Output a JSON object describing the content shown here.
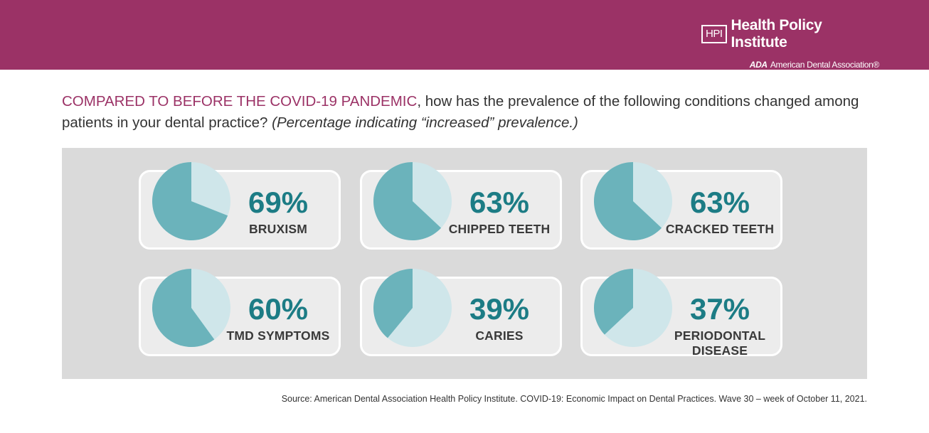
{
  "header": {
    "logo_abbr": "HPI",
    "logo_name": "Health Policy Institute",
    "ada_abbr": "ADA",
    "ada_name": "American Dental Association®"
  },
  "question": {
    "lead": "COMPARED TO BEFORE THE COVID-19 PANDEMIC",
    "body": ", how has the prevalence of the following conditions changed among patients in your dental practice? ",
    "note": "(Percentage indicating “increased” prevalence.)"
  },
  "chart_data": {
    "type": "pie",
    "unit": "%",
    "colors": {
      "increased": "#6bb3bb",
      "remainder": "#cfe6ea",
      "value_text": "#1c7c85"
    },
    "items": [
      {
        "label": "BRUXISM",
        "value": 69,
        "value_label": "69%"
      },
      {
        "label": "CHIPPED TEETH",
        "value": 63,
        "value_label": "63%"
      },
      {
        "label": "CRACKED TEETH",
        "value": 63,
        "value_label": "63%"
      },
      {
        "label": "TMD SYMPTOMS",
        "value": 60,
        "value_label": "60%"
      },
      {
        "label": "CARIES",
        "value": 39,
        "value_label": "39%"
      },
      {
        "label": "PERIODONTAL\nDISEASE",
        "value": 37,
        "value_label": "37%"
      }
    ]
  },
  "footer": {
    "source": "Source: American Dental Association Health Policy Institute. COVID-19: Economic Impact on Dental Practices. Wave 30 – week of October 11, 2021."
  }
}
